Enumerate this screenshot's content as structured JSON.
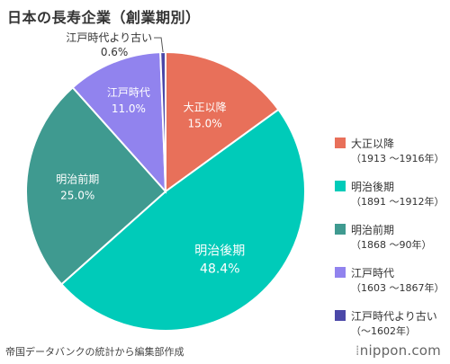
{
  "title": "日本の長寿企業（創業期別）",
  "source": "帝国データバンクの統計から編集部作成",
  "logo": {
    "text": "nippon.com",
    "mark": "⁞"
  },
  "chart_data": {
    "type": "pie",
    "title": "日本の長寿企業（創業期別）",
    "start_angle_deg": 0,
    "direction": "clockwise",
    "slices": [
      {
        "label": "大正以降",
        "value": 15.0,
        "value_label": "15.0%",
        "range": "（1913 〜1916年）",
        "color": "#e8705a",
        "label_inside": true,
        "text_color": "#ffffff"
      },
      {
        "label": "明治後期",
        "value": 48.4,
        "value_label": "48.4%",
        "range": "（1891 〜1912年）",
        "color": "#00cbb9",
        "label_inside": true,
        "text_color": "#ffffff"
      },
      {
        "label": "明治前期",
        "value": 25.0,
        "value_label": "25.0%",
        "range": "（1868 〜90年）",
        "color": "#3f9a90",
        "label_inside": true,
        "text_color": "#ffffff"
      },
      {
        "label": "江戸時代",
        "value": 11.0,
        "value_label": "11.0%",
        "range": "（1603 〜1867年）",
        "color": "#9183ee",
        "label_inside": true,
        "text_color": "#ffffff"
      },
      {
        "label": "江戸時代より古い",
        "value": 0.6,
        "value_label": "0.6%",
        "range": "（〜1602年）",
        "color": "#4b48a8",
        "label_inside": false,
        "text_color": "#333333"
      }
    ],
    "legend_position": "right"
  }
}
